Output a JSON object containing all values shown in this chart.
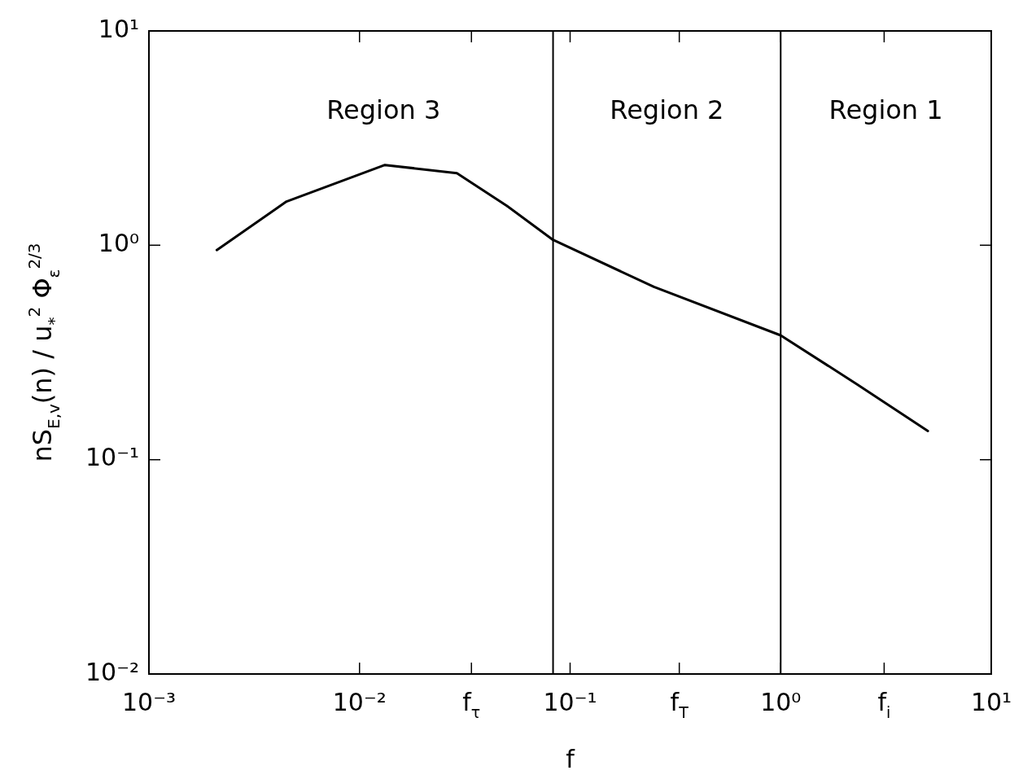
{
  "chart_data": {
    "type": "line",
    "xlabel": "f",
    "ylabel": "nS$_{E,v}$(n) / u$_{*}$$^{2}$ Φ$_{ε}$$^{2/3}$",
    "log": "xy",
    "xlim": [
      0.001,
      10
    ],
    "ylim": [
      0.01,
      10
    ],
    "xticks": [
      {
        "value": 0.001,
        "label": "10⁻³"
      },
      {
        "value": 0.01,
        "label": "10⁻²"
      },
      {
        "value": 0.034,
        "label": "f$_{τ}$"
      },
      {
        "value": 0.1,
        "label": "10⁻¹"
      },
      {
        "value": 0.33,
        "label": "f$_{T}$"
      },
      {
        "value": 1,
        "label": "10⁰"
      },
      {
        "value": 3.1,
        "label": "f$_{i}$"
      },
      {
        "value": 10,
        "label": "10¹"
      }
    ],
    "yticks": [
      {
        "value": 0.01,
        "label": "10⁻²"
      },
      {
        "value": 0.1,
        "label": "10⁻¹"
      },
      {
        "value": 1,
        "label": "10⁰"
      },
      {
        "value": 10,
        "label": "10¹"
      }
    ],
    "series": [
      {
        "color": "#000000",
        "x": [
          0.0021,
          0.0045,
          0.0132,
          0.029,
          0.05,
          0.083,
          0.25,
          1,
          2.3,
          5
        ],
        "values": [
          0.95,
          1.6,
          2.37,
          2.17,
          1.53,
          1.06,
          0.64,
          0.38,
          0.225,
          0.136
        ]
      }
    ],
    "ref_lines": [
      {
        "axis": "x",
        "value": 0.083,
        "color": "#000000"
      },
      {
        "axis": "x",
        "value": 1,
        "color": "#000000"
      }
    ],
    "annotations": [
      "Region 3",
      "Region 2",
      "Region 1"
    ]
  }
}
